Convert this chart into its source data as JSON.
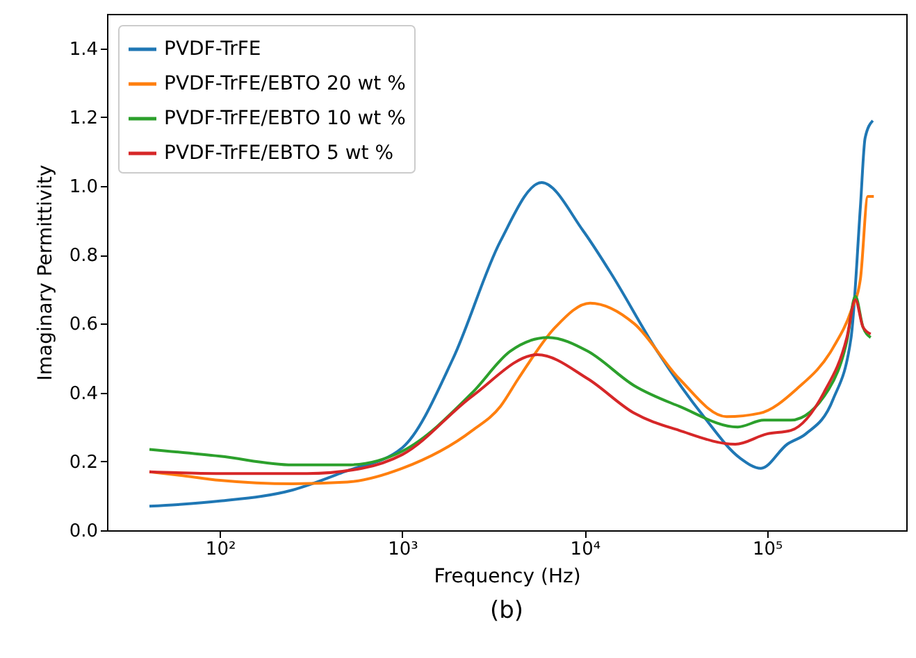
{
  "chart_data": {
    "type": "line",
    "xlabel": "Frequency (Hz)",
    "ylabel": "Imaginary Permittivity",
    "annotations": [
      "(b)"
    ],
    "log": "x",
    "grid": false,
    "legend": "top left",
    "line_style": "solid",
    "marker": "none",
    "xlim": [
      24,
      580000
    ],
    "xticks": [
      {
        "value": 100,
        "label": "10²"
      },
      {
        "value": 1000,
        "label": "10³"
      },
      {
        "value": 10000,
        "label": "10⁴"
      },
      {
        "value": 100000,
        "label": "10⁵"
      }
    ],
    "ylim": [
      0,
      1.5
    ],
    "yticks": [
      {
        "value": 0,
        "label": "0.0"
      },
      {
        "value": 0.2,
        "label": "0.2"
      },
      {
        "value": 0.4,
        "label": "0.4"
      },
      {
        "value": 0.6,
        "label": "0.6"
      },
      {
        "value": 0.8,
        "label": "0.8"
      },
      {
        "value": 1.0,
        "label": "1.0"
      },
      {
        "value": 1.2,
        "label": "1.2"
      },
      {
        "value": 1.4,
        "label": "1.4"
      }
    ],
    "series": [
      {
        "name": "PVDF-TrFE",
        "color": "#1f77b4",
        "x": [
          41,
          60,
          100,
          250,
          480,
          1000,
          1900,
          3450,
          5800,
          9800,
          13800,
          25000,
          45000,
          71000,
          92500,
          129000,
          163000,
          230000,
          289000,
          325000,
          345000,
          380000
        ],
        "values": [
          0.07,
          0.075,
          0.085,
          0.117,
          0.17,
          0.24,
          0.5,
          0.84,
          1.01,
          0.87,
          0.75,
          0.52,
          0.33,
          0.21,
          0.18,
          0.25,
          0.28,
          0.38,
          0.56,
          0.94,
          1.14,
          1.19
        ]
      },
      {
        "name": "PVDF-TrFE/EBTO 20 wt %",
        "color": "#ff7f0e",
        "x": [
          41,
          60,
          100,
          250,
          500,
          1000,
          2420,
          3450,
          4320,
          6900,
          10700,
          18700,
          33000,
          60000,
          91000,
          145000,
          230000,
          290000,
          325000,
          357000,
          385000
        ],
        "values": [
          0.17,
          0.16,
          0.145,
          0.135,
          0.14,
          0.18,
          0.29,
          0.36,
          0.44,
          0.59,
          0.66,
          0.6,
          0.44,
          0.33,
          0.34,
          0.41,
          0.53,
          0.64,
          0.73,
          0.97,
          0.97
        ]
      },
      {
        "name": "PVDF-TrFE/EBTO 10 wt %",
        "color": "#2ca02c",
        "x": [
          41,
          100,
          250,
          500,
          1000,
          2420,
          3900,
          6300,
          10400,
          18700,
          33000,
          69000,
          96000,
          135000,
          218000,
          274000,
          305000,
          336000,
          370000
        ],
        "values": [
          0.235,
          0.215,
          0.19,
          0.19,
          0.23,
          0.4,
          0.52,
          0.56,
          0.52,
          0.42,
          0.36,
          0.3,
          0.32,
          0.32,
          0.41,
          0.55,
          0.68,
          0.59,
          0.56
        ]
      },
      {
        "name": "PVDF-TrFE/EBTO 5 wt %",
        "color": "#d62728",
        "x": [
          41,
          100,
          300,
          600,
          1000,
          2420,
          5500,
          10400,
          18700,
          33000,
          67000,
          100000,
          135000,
          205000,
          274000,
          305000,
          336000,
          370000
        ],
        "values": [
          0.17,
          0.165,
          0.165,
          0.18,
          0.22,
          0.39,
          0.51,
          0.44,
          0.34,
          0.29,
          0.25,
          0.28,
          0.29,
          0.4,
          0.56,
          0.67,
          0.59,
          0.57
        ]
      }
    ]
  }
}
